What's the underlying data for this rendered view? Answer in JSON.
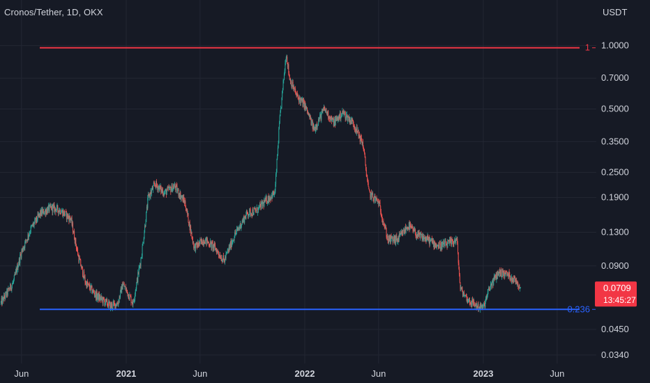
{
  "header": {
    "symbol": "Cronos/Tether",
    "interval": "1D",
    "exchange": "OKX"
  },
  "price_axis": {
    "unit": "USDT",
    "ticks": [
      "1.0000",
      "0.7000",
      "0.5000",
      "0.3500",
      "0.2500",
      "0.1900",
      "0.1300",
      "0.0900",
      "0.0450",
      "0.0340"
    ]
  },
  "time_axis": {
    "ticks": [
      {
        "label": "Jun",
        "bold": false
      },
      {
        "label": "2021",
        "bold": true
      },
      {
        "label": "Jun",
        "bold": false
      },
      {
        "label": "2022",
        "bold": true
      },
      {
        "label": "Jun",
        "bold": false
      },
      {
        "label": "2023",
        "bold": true
      },
      {
        "label": "Jun",
        "bold": false
      }
    ]
  },
  "current_price": {
    "value": "0.0709",
    "countdown": "13:45:27"
  },
  "fib_levels": [
    {
      "label": "1",
      "price": 0.975,
      "color": "#f23645"
    },
    {
      "label": "0.236",
      "price": 0.056,
      "color": "#2962ff"
    }
  ],
  "colors": {
    "background": "#161a25",
    "up": "#26a69a",
    "down": "#ef5350",
    "grid": "#232733",
    "text": "#d1d4dc",
    "price_badge": "#f23645"
  },
  "chart_data": {
    "type": "candlestick",
    "title": "Cronos/Tether, 1D, OKX",
    "ylabel": "USDT",
    "y_scale": "log",
    "ylim": [
      0.031,
      1.25
    ],
    "xlim": [
      "2020-04-18",
      "2023-08-20"
    ],
    "grid": true,
    "trend_path": [
      [
        "2020-04-20",
        0.06
      ],
      [
        "2020-05-15",
        0.075
      ],
      [
        "2020-06-01",
        0.105
      ],
      [
        "2020-06-20",
        0.135
      ],
      [
        "2020-07-10",
        0.16
      ],
      [
        "2020-08-01",
        0.17
      ],
      [
        "2020-08-20",
        0.165
      ],
      [
        "2020-09-10",
        0.15
      ],
      [
        "2020-09-25",
        0.1
      ],
      [
        "2020-10-10",
        0.075
      ],
      [
        "2020-11-01",
        0.065
      ],
      [
        "2020-12-01",
        0.058
      ],
      [
        "2020-12-15",
        0.06
      ],
      [
        "2020-12-25",
        0.074
      ],
      [
        "2021-01-15",
        0.06
      ],
      [
        "2021-02-01",
        0.1
      ],
      [
        "2021-02-15",
        0.19
      ],
      [
        "2021-03-01",
        0.22
      ],
      [
        "2021-03-20",
        0.2
      ],
      [
        "2021-04-10",
        0.215
      ],
      [
        "2021-05-01",
        0.18
      ],
      [
        "2021-05-20",
        0.11
      ],
      [
        "2021-06-10",
        0.12
      ],
      [
        "2021-07-01",
        0.11
      ],
      [
        "2021-07-20",
        0.095
      ],
      [
        "2021-08-10",
        0.125
      ],
      [
        "2021-09-05",
        0.16
      ],
      [
        "2021-09-25",
        0.165
      ],
      [
        "2021-10-15",
        0.185
      ],
      [
        "2021-11-01",
        0.2
      ],
      [
        "2021-11-10",
        0.42
      ],
      [
        "2021-11-24",
        0.92
      ],
      [
        "2021-12-01",
        0.7
      ],
      [
        "2021-12-15",
        0.58
      ],
      [
        "2022-01-01",
        0.52
      ],
      [
        "2022-01-20",
        0.4
      ],
      [
        "2022-02-10",
        0.5
      ],
      [
        "2022-03-01",
        0.43
      ],
      [
        "2022-03-20",
        0.48
      ],
      [
        "2022-04-10",
        0.43
      ],
      [
        "2022-04-30",
        0.34
      ],
      [
        "2022-05-12",
        0.2
      ],
      [
        "2022-06-01",
        0.18
      ],
      [
        "2022-06-20",
        0.12
      ],
      [
        "2022-07-10",
        0.12
      ],
      [
        "2022-08-01",
        0.14
      ],
      [
        "2022-08-20",
        0.125
      ],
      [
        "2022-09-10",
        0.12
      ],
      [
        "2022-10-01",
        0.112
      ],
      [
        "2022-10-20",
        0.114
      ],
      [
        "2022-11-08",
        0.12
      ],
      [
        "2022-11-15",
        0.07
      ],
      [
        "2022-12-01",
        0.062
      ],
      [
        "2022-12-20",
        0.058
      ],
      [
        "2023-01-01",
        0.057
      ],
      [
        "2023-01-15",
        0.072
      ],
      [
        "2023-02-01",
        0.084
      ],
      [
        "2023-02-20",
        0.082
      ],
      [
        "2023-03-10",
        0.076
      ],
      [
        "2023-03-18",
        0.0709
      ]
    ]
  }
}
